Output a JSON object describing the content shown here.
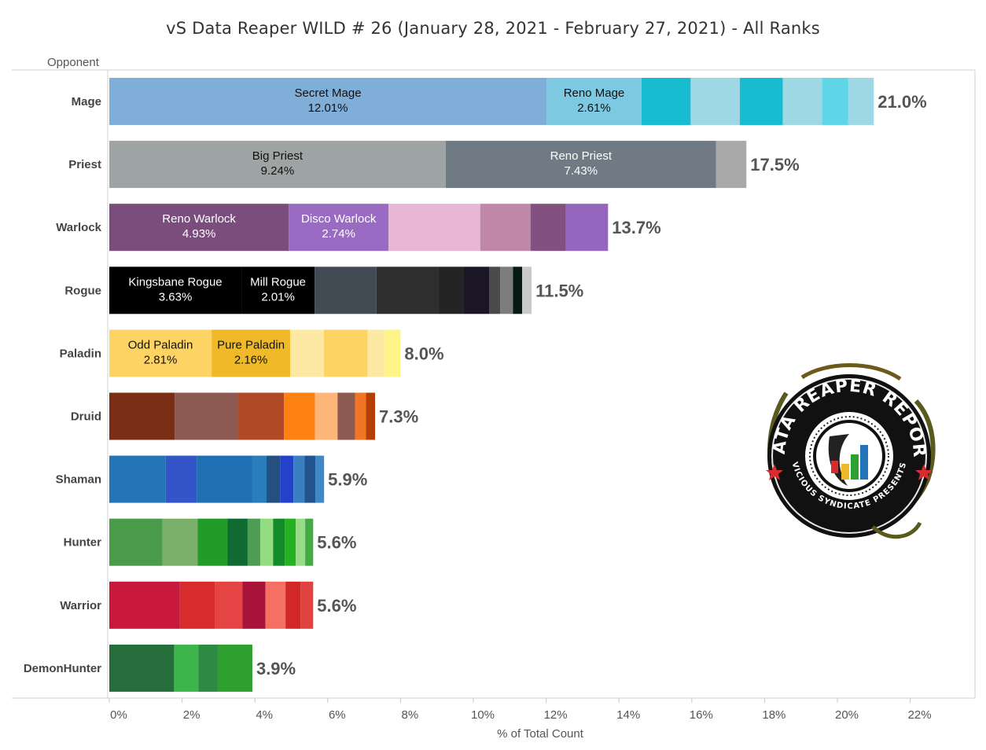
{
  "chart_data": {
    "type": "bar",
    "orientation": "horizontal",
    "stacked": true,
    "title": "vS Data Reaper WILD # 26 (January 28, 2021 - February 27, 2021) - All Ranks",
    "ylabel": "Opponent",
    "xlabel": "% of Total Count",
    "xlim": [
      0,
      22
    ],
    "xticks": [
      0,
      2,
      4,
      6,
      8,
      10,
      12,
      14,
      16,
      18,
      20,
      22
    ],
    "tick_suffix": "%",
    "grid": false,
    "categories": [
      {
        "name": "Mage",
        "total_label": "21.0%",
        "segments": [
          {
            "name": "Secret Mage",
            "value": 12.01,
            "label": "12.01%",
            "color": "#7fafd9",
            "text_color": "#111111"
          },
          {
            "name": "Reno Mage",
            "value": 2.61,
            "label": "2.61%",
            "color": "#7cc9e1",
            "text_color": "#111111"
          },
          {
            "value": 1.35,
            "color": "#17bcd0"
          },
          {
            "value": 1.35,
            "color": "#9ed8e4"
          },
          {
            "value": 1.18,
            "color": "#17bcd0"
          },
          {
            "value": 1.08,
            "color": "#9ed8e4"
          },
          {
            "value": 0.72,
            "color": "#5fd6e8"
          },
          {
            "value": 0.7,
            "color": "#9ed8e4"
          }
        ]
      },
      {
        "name": "Priest",
        "total_label": "17.5%",
        "segments": [
          {
            "name": "Big Priest",
            "value": 9.24,
            "label": "9.24%",
            "color": "#9ea3a3",
            "text_color": "#111111"
          },
          {
            "name": "Reno Priest",
            "value": 7.43,
            "label": "7.43%",
            "color": "#707a84",
            "text_color": "#ffffff"
          },
          {
            "value": 0.83,
            "color": "#a9a9a9"
          }
        ]
      },
      {
        "name": "Warlock",
        "total_label": "13.7%",
        "segments": [
          {
            "name": "Reno Warlock",
            "value": 4.93,
            "label": "4.93%",
            "color": "#7a4d7c",
            "text_color": "#ffffff"
          },
          {
            "name": "Disco Warlock",
            "value": 2.74,
            "label": "2.74%",
            "color": "#9a6bc2",
            "text_color": "#ffffff"
          },
          {
            "value": 2.52,
            "color": "#e7b7d5"
          },
          {
            "value": 1.38,
            "color": "#c087a9"
          },
          {
            "value": 0.97,
            "color": "#83517f"
          },
          {
            "value": 1.16,
            "color": "#9466be"
          }
        ]
      },
      {
        "name": "Rogue",
        "total_label": "11.5%",
        "segments": [
          {
            "name": "Kingsbane Rogue",
            "value": 3.63,
            "label": "3.63%",
            "color": "#000000",
            "text_color": "#ffffff"
          },
          {
            "name": "Mill Rogue",
            "value": 2.01,
            "label": "2.01%",
            "color": "#000000",
            "text_color": "#ffffff"
          },
          {
            "value": 1.7,
            "color": "#424b54"
          },
          {
            "value": 1.7,
            "color": "#2e2e2e"
          },
          {
            "value": 0.7,
            "color": "#242424"
          },
          {
            "value": 0.7,
            "color": "#1a1625"
          },
          {
            "value": 0.3,
            "color": "#4a4a4a"
          },
          {
            "value": 0.35,
            "color": "#7c7c7c"
          },
          {
            "value": 0.25,
            "color": "#061a14"
          },
          {
            "value": 0.26,
            "color": "#c9c9c9"
          }
        ]
      },
      {
        "name": "Paladin",
        "total_label": "8.0%",
        "segments": [
          {
            "name": "Odd Paladin",
            "value": 2.81,
            "label": "2.81%",
            "color": "#fdd464",
            "text_color": "#111111"
          },
          {
            "name": "Pure Paladin",
            "value": 2.16,
            "label": "2.16%",
            "color": "#f0b928",
            "text_color": "#111111"
          },
          {
            "value": 0.92,
            "color": "#fde9a3"
          },
          {
            "value": 1.21,
            "color": "#fdd464"
          },
          {
            "value": 0.45,
            "color": "#fde9a3"
          },
          {
            "value": 0.45,
            "color": "#fef48a"
          }
        ]
      },
      {
        "name": "Druid",
        "total_label": "7.3%",
        "segments": [
          {
            "value": 1.8,
            "color": "#7a2e16"
          },
          {
            "value": 1.73,
            "color": "#8d5a52"
          },
          {
            "value": 1.27,
            "color": "#b04a26"
          },
          {
            "value": 0.85,
            "color": "#fd8211"
          },
          {
            "value": 0.62,
            "color": "#fdb57a"
          },
          {
            "value": 0.48,
            "color": "#8d5a52"
          },
          {
            "value": 0.3,
            "color": "#f27525"
          },
          {
            "value": 0.25,
            "color": "#b33f06"
          }
        ]
      },
      {
        "name": "Shaman",
        "total_label": "5.9%",
        "segments": [
          {
            "value": 1.55,
            "color": "#2474b8"
          },
          {
            "value": 0.85,
            "color": "#3455c8"
          },
          {
            "value": 1.52,
            "color": "#1f6fb5"
          },
          {
            "value": 0.4,
            "color": "#2a7dbb"
          },
          {
            "value": 0.37,
            "color": "#24507f"
          },
          {
            "value": 0.37,
            "color": "#2342ca"
          },
          {
            "value": 0.3,
            "color": "#3c7fc0"
          },
          {
            "value": 0.3,
            "color": "#22548e"
          },
          {
            "value": 0.24,
            "color": "#4089c7"
          }
        ]
      },
      {
        "name": "Hunter",
        "total_label": "5.6%",
        "segments": [
          {
            "value": 1.46,
            "color": "#4a9c4b"
          },
          {
            "value": 0.97,
            "color": "#7ab069"
          },
          {
            "value": 0.82,
            "color": "#239b28"
          },
          {
            "value": 0.55,
            "color": "#0f6b31"
          },
          {
            "value": 0.35,
            "color": "#4f9d54"
          },
          {
            "value": 0.35,
            "color": "#92dc82"
          },
          {
            "value": 0.32,
            "color": "#138a2b"
          },
          {
            "value": 0.3,
            "color": "#26b122"
          },
          {
            "value": 0.26,
            "color": "#98dc8a"
          },
          {
            "value": 0.22,
            "color": "#45a945"
          }
        ]
      },
      {
        "name": "Warrior",
        "total_label": "5.6%",
        "segments": [
          {
            "value": 1.94,
            "color": "#c8193d"
          },
          {
            "value": 0.97,
            "color": "#d72b2e"
          },
          {
            "value": 0.75,
            "color": "#e54444"
          },
          {
            "value": 0.63,
            "color": "#a8133a"
          },
          {
            "value": 0.55,
            "color": "#f57062"
          },
          {
            "value": 0.41,
            "color": "#d32629"
          },
          {
            "value": 0.35,
            "color": "#e0423f"
          }
        ]
      },
      {
        "name": "DemonHunter",
        "total_label": "3.9%",
        "segments": [
          {
            "value": 1.78,
            "color": "#256d3a"
          },
          {
            "value": 0.67,
            "color": "#3cb54a"
          },
          {
            "value": 0.53,
            "color": "#2d8a42"
          },
          {
            "value": 0.95,
            "color": "#2ea02f"
          }
        ]
      }
    ]
  },
  "logo": {
    "text_top": "DATA REAPER REPORT",
    "text_bottom": "VICIOUS SYNDICATE PRESENTS"
  }
}
